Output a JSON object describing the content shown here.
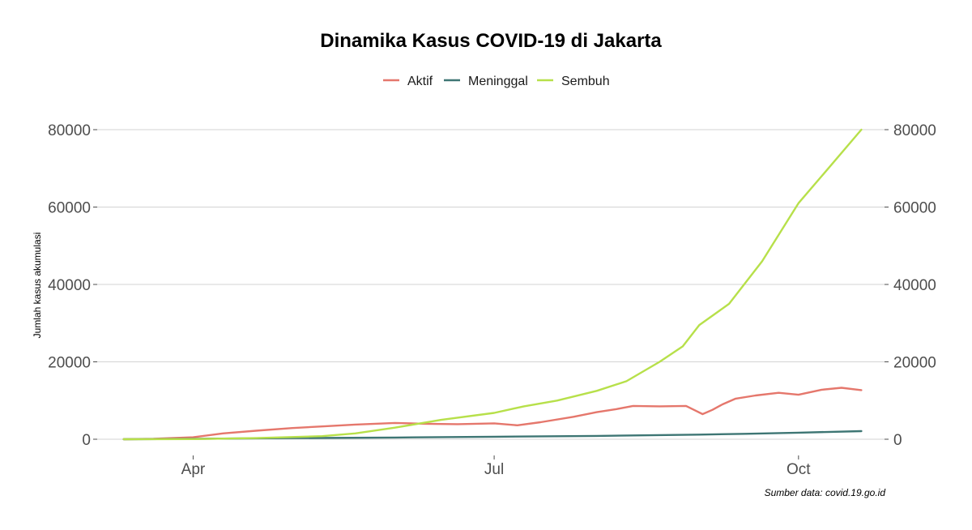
{
  "chart_data": {
    "type": "line",
    "title": "Dinamika Kasus COVID-19 di Jakarta",
    "ylabel": "Jumlah kasus akumulasi",
    "caption": "Sumber data: covid.19.go.id",
    "legend_position": "top",
    "grid": true,
    "secondary_y_axis": true,
    "x_ticks": [
      "Apr",
      "Jul",
      "Oct"
    ],
    "y_ticks": [
      0,
      20000,
      40000,
      60000,
      80000
    ],
    "xlim": [
      "2020-03-03",
      "2020-10-27"
    ],
    "ylim": [
      -3500,
      87000
    ],
    "colors": {
      "Aktif": "#E5776C",
      "Meninggal": "#3E7674",
      "Sembuh": "#B7E04A"
    },
    "series": [
      {
        "name": "Aktif",
        "x": [
          "2020-03-11",
          "2020-03-20",
          "2020-04-01",
          "2020-04-10",
          "2020-04-20",
          "2020-05-01",
          "2020-05-10",
          "2020-05-20",
          "2020-06-01",
          "2020-06-10",
          "2020-06-20",
          "2020-07-01",
          "2020-07-08",
          "2020-07-15",
          "2020-07-25",
          "2020-08-01",
          "2020-08-07",
          "2020-08-12",
          "2020-08-20",
          "2020-08-28",
          "2020-09-02",
          "2020-09-05",
          "2020-09-08",
          "2020-09-12",
          "2020-09-18",
          "2020-09-25",
          "2020-10-01",
          "2020-10-08",
          "2020-10-14",
          "2020-10-20"
        ],
        "y": [
          0,
          100,
          500,
          1500,
          2200,
          2900,
          3300,
          3800,
          4200,
          4000,
          3900,
          4100,
          3600,
          4400,
          5800,
          7000,
          7800,
          8600,
          8500,
          8600,
          6500,
          7600,
          9000,
          10500,
          11300,
          12000,
          11500,
          12800,
          13300,
          12700
        ]
      },
      {
        "name": "Meninggal",
        "x": [
          "2020-03-11",
          "2020-04-01",
          "2020-05-01",
          "2020-06-01",
          "2020-07-01",
          "2020-08-01",
          "2020-09-01",
          "2020-09-15",
          "2020-10-01",
          "2020-10-20"
        ],
        "y": [
          0,
          100,
          300,
          450,
          650,
          850,
          1200,
          1400,
          1700,
          2100
        ]
      },
      {
        "name": "Sembuh",
        "x": [
          "2020-03-11",
          "2020-04-01",
          "2020-04-20",
          "2020-05-10",
          "2020-05-20",
          "2020-06-01",
          "2020-06-15",
          "2020-07-01",
          "2020-07-10",
          "2020-07-20",
          "2020-08-01",
          "2020-08-10",
          "2020-08-20",
          "2020-08-27",
          "2020-09-01",
          "2020-09-10",
          "2020-09-20",
          "2020-10-01",
          "2020-10-10",
          "2020-10-20"
        ],
        "y": [
          0,
          50,
          300,
          800,
          1500,
          3000,
          5000,
          6800,
          8500,
          10000,
          12500,
          15000,
          20000,
          24000,
          29500,
          35000,
          46000,
          61000,
          70000,
          80000
        ]
      }
    ]
  }
}
